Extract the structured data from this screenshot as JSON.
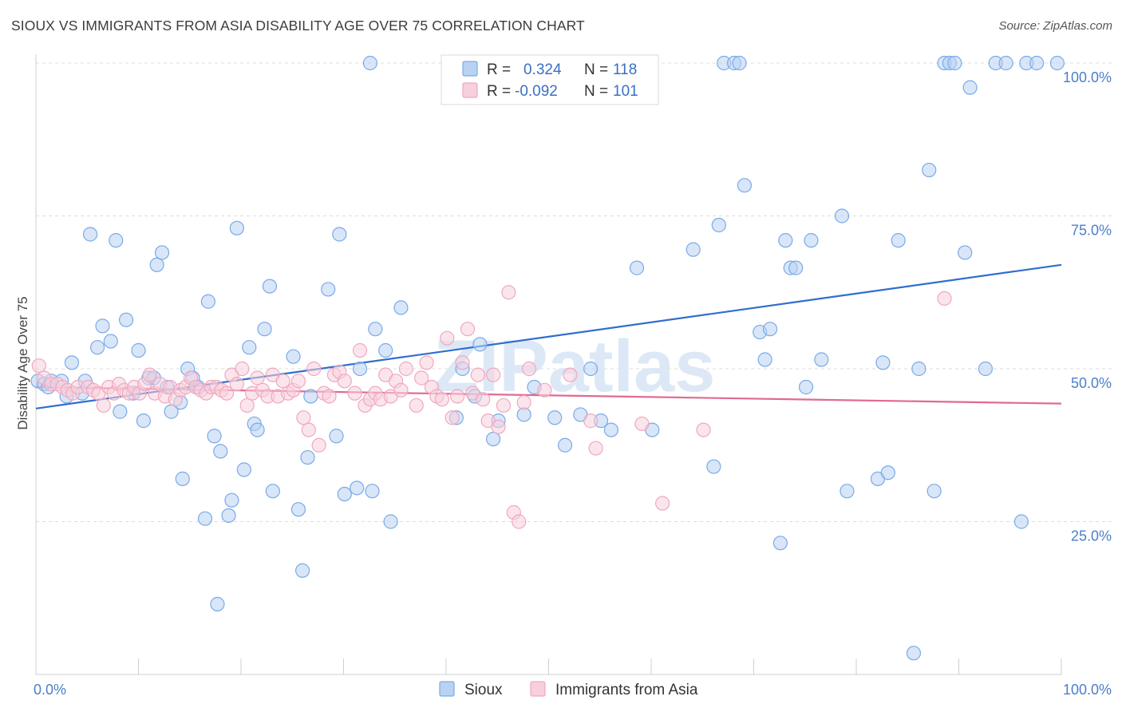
{
  "title": "SIOUX VS IMMIGRANTS FROM ASIA DISABILITY AGE OVER 75 CORRELATION CHART",
  "source": "Source: ZipAtlas.com",
  "watermark": "ZIPatlas",
  "chart_data": {
    "type": "scatter",
    "ylabel": "Disability Age Over 75",
    "xlim": [
      0,
      100
    ],
    "ylim": [
      0,
      100
    ],
    "x_tick_labels": [
      "0.0%",
      "100.0%"
    ],
    "y_ticks": [
      {
        "value": 25,
        "label": "25.0%"
      },
      {
        "value": 50,
        "label": "50.0%"
      },
      {
        "value": 75,
        "label": "75.0%"
      },
      {
        "value": 100,
        "label": "100.0%"
      }
    ],
    "grid": true,
    "legend_position": "top-center",
    "series": [
      {
        "name": "Sioux",
        "color": "#7aaae8",
        "fill": "#b8d2f2",
        "line_color": "#2f6fcc",
        "R": "0.324",
        "N": "118",
        "trend": {
          "x": [
            0,
            100
          ],
          "y": [
            43.5,
            67
          ]
        },
        "points": [
          [
            0.2,
            48
          ],
          [
            0.8,
            47.5
          ],
          [
            1.2,
            47
          ],
          [
            1.5,
            48
          ],
          [
            2.5,
            48
          ],
          [
            3,
            45.5
          ],
          [
            3.5,
            51
          ],
          [
            4.5,
            46
          ],
          [
            4.8,
            48
          ],
          [
            5.3,
            72
          ],
          [
            6,
            53.5
          ],
          [
            6.5,
            57
          ],
          [
            7.3,
            54.5
          ],
          [
            7.8,
            71
          ],
          [
            8.2,
            43
          ],
          [
            8.8,
            58
          ],
          [
            9.5,
            46
          ],
          [
            10,
            53
          ],
          [
            10.5,
            41.5
          ],
          [
            11,
            48.5
          ],
          [
            11.5,
            48.5
          ],
          [
            11.8,
            67
          ],
          [
            12.3,
            69
          ],
          [
            12.8,
            47
          ],
          [
            13.2,
            43
          ],
          [
            14.1,
            44.5
          ],
          [
            14.3,
            32
          ],
          [
            14.8,
            50
          ],
          [
            15.3,
            48.5
          ],
          [
            15.8,
            47
          ],
          [
            16.5,
            25.5
          ],
          [
            16.8,
            61
          ],
          [
            17.4,
            39
          ],
          [
            17.7,
            11.5
          ],
          [
            18,
            36.5
          ],
          [
            18.8,
            26
          ],
          [
            19.1,
            28.5
          ],
          [
            19.6,
            73
          ],
          [
            20.3,
            33.5
          ],
          [
            20.8,
            53.5
          ],
          [
            21.3,
            41
          ],
          [
            21.6,
            40
          ],
          [
            22.3,
            56.5
          ],
          [
            22.8,
            63.5
          ],
          [
            23.1,
            30
          ],
          [
            25.1,
            52
          ],
          [
            25.6,
            27
          ],
          [
            26,
            17
          ],
          [
            26.5,
            35.5
          ],
          [
            26.8,
            45.5
          ],
          [
            28.5,
            63
          ],
          [
            29.3,
            39
          ],
          [
            29.6,
            72
          ],
          [
            30.1,
            29.5
          ],
          [
            31.3,
            30.5
          ],
          [
            31.6,
            50
          ],
          [
            32.6,
            100
          ],
          [
            32.8,
            30
          ],
          [
            33.1,
            56.5
          ],
          [
            34.1,
            53
          ],
          [
            34.6,
            25
          ],
          [
            35.6,
            60
          ],
          [
            41,
            42
          ],
          [
            41.6,
            50
          ],
          [
            42.8,
            45.5
          ],
          [
            43.3,
            54
          ],
          [
            44.6,
            38.5
          ],
          [
            45.1,
            41.5
          ],
          [
            47.6,
            42.5
          ],
          [
            48.6,
            47
          ],
          [
            49.1,
            100
          ],
          [
            50.6,
            42
          ],
          [
            51.6,
            37.5
          ],
          [
            53.1,
            42.5
          ],
          [
            54.1,
            50
          ],
          [
            55.1,
            41.5
          ],
          [
            56.1,
            40
          ],
          [
            58.6,
            66.5
          ],
          [
            60.1,
            40
          ],
          [
            64.1,
            69.5
          ],
          [
            66.1,
            34
          ],
          [
            66.6,
            73.5
          ],
          [
            67.1,
            100
          ],
          [
            68.1,
            100
          ],
          [
            68.6,
            100
          ],
          [
            69.1,
            80
          ],
          [
            70.6,
            56
          ],
          [
            71.1,
            51.5
          ],
          [
            71.6,
            56.5
          ],
          [
            72.6,
            21.5
          ],
          [
            73.1,
            71
          ],
          [
            73.6,
            66.5
          ],
          [
            74.1,
            66.5
          ],
          [
            75.6,
            71
          ],
          [
            75.1,
            47
          ],
          [
            76.6,
            51.5
          ],
          [
            78.6,
            75
          ],
          [
            79.1,
            30
          ],
          [
            82.1,
            32
          ],
          [
            82.6,
            51
          ],
          [
            83.1,
            33
          ],
          [
            84.1,
            71
          ],
          [
            85.6,
            3.5
          ],
          [
            86.1,
            50
          ],
          [
            87.1,
            82.5
          ],
          [
            87.6,
            30
          ],
          [
            88.6,
            100
          ],
          [
            89.1,
            100
          ],
          [
            89.6,
            100
          ],
          [
            90.6,
            69
          ],
          [
            91.1,
            96
          ],
          [
            92.6,
            50
          ],
          [
            93.6,
            100
          ],
          [
            94.6,
            100
          ],
          [
            96.1,
            25
          ],
          [
            96.6,
            100
          ],
          [
            99.6,
            100
          ],
          [
            97.6,
            100
          ]
        ]
      },
      {
        "name": "Immigrants from Asia",
        "color": "#f0a8bf",
        "fill": "#f8cfdc",
        "line_color": "#e06a92",
        "R": "-0.092",
        "N": "101",
        "trend": {
          "x": [
            0,
            100
          ],
          "y": [
            47,
            44.3
          ]
        },
        "points": [
          [
            0.3,
            50.5
          ],
          [
            0.8,
            48.5
          ],
          [
            1.5,
            47.5
          ],
          [
            2.1,
            47.5
          ],
          [
            2.6,
            47
          ],
          [
            3.1,
            46.5
          ],
          [
            3.6,
            46
          ],
          [
            4.1,
            47
          ],
          [
            5.1,
            47
          ],
          [
            5.6,
            46.5
          ],
          [
            6.1,
            46
          ],
          [
            6.6,
            44
          ],
          [
            7.1,
            47
          ],
          [
            7.6,
            46
          ],
          [
            8.1,
            47.5
          ],
          [
            8.6,
            46.5
          ],
          [
            9.1,
            46
          ],
          [
            9.6,
            47
          ],
          [
            10.1,
            46
          ],
          [
            10.6,
            47.5
          ],
          [
            11.1,
            49
          ],
          [
            11.6,
            46
          ],
          [
            12.1,
            47.5
          ],
          [
            12.6,
            45.5
          ],
          [
            13.1,
            47
          ],
          [
            13.6,
            45
          ],
          [
            14.1,
            46.5
          ],
          [
            14.6,
            47
          ],
          [
            15.1,
            48.5
          ],
          [
            15.6,
            47
          ],
          [
            16.1,
            46.5
          ],
          [
            16.6,
            46
          ],
          [
            17.1,
            47
          ],
          [
            17.6,
            47
          ],
          [
            18.1,
            46.5
          ],
          [
            18.6,
            46
          ],
          [
            19.1,
            49
          ],
          [
            19.6,
            47.5
          ],
          [
            20.1,
            50
          ],
          [
            20.6,
            44
          ],
          [
            21.1,
            46
          ],
          [
            21.6,
            48.5
          ],
          [
            22.1,
            46.5
          ],
          [
            22.6,
            45.5
          ],
          [
            23.1,
            49
          ],
          [
            23.6,
            45.5
          ],
          [
            24.1,
            48
          ],
          [
            24.6,
            46
          ],
          [
            25.1,
            46.5
          ],
          [
            25.6,
            48
          ],
          [
            26.1,
            42
          ],
          [
            26.6,
            40
          ],
          [
            27.1,
            50
          ],
          [
            27.6,
            37.5
          ],
          [
            28.1,
            46
          ],
          [
            28.6,
            45.5
          ],
          [
            29.1,
            49
          ],
          [
            29.6,
            49.5
          ],
          [
            30.1,
            48
          ],
          [
            31.1,
            46
          ],
          [
            31.6,
            53
          ],
          [
            32.1,
            44
          ],
          [
            32.6,
            45
          ],
          [
            33.1,
            46
          ],
          [
            33.6,
            45
          ],
          [
            34.1,
            49
          ],
          [
            34.6,
            45.5
          ],
          [
            35.1,
            48
          ],
          [
            35.6,
            46.5
          ],
          [
            36.1,
            50
          ],
          [
            37.1,
            44
          ],
          [
            37.6,
            48.5
          ],
          [
            38.1,
            51
          ],
          [
            38.6,
            47
          ],
          [
            39.1,
            45.5
          ],
          [
            39.6,
            45
          ],
          [
            40.1,
            55
          ],
          [
            40.6,
            42
          ],
          [
            41.1,
            45.5
          ],
          [
            41.6,
            51
          ],
          [
            42.1,
            56.5
          ],
          [
            42.6,
            46
          ],
          [
            43.1,
            49
          ],
          [
            43.6,
            45
          ],
          [
            44.1,
            41.5
          ],
          [
            44.6,
            49
          ],
          [
            45.1,
            40.5
          ],
          [
            45.6,
            44
          ],
          [
            46.1,
            62.5
          ],
          [
            46.6,
            26.5
          ],
          [
            47.1,
            25
          ],
          [
            47.6,
            44.5
          ],
          [
            48.1,
            50
          ],
          [
            49.6,
            46.5
          ],
          [
            52.1,
            49
          ],
          [
            54.1,
            41.5
          ],
          [
            54.6,
            37
          ],
          [
            59.1,
            41
          ],
          [
            61.1,
            28
          ],
          [
            65.1,
            40
          ],
          [
            88.6,
            61.5
          ]
        ]
      }
    ]
  }
}
